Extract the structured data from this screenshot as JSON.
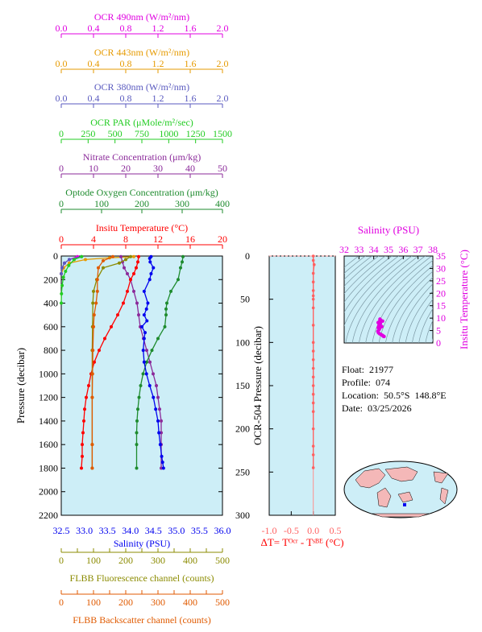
{
  "colors": {
    "ocr490": "#e000e0",
    "ocr443": "#e69a00",
    "ocr380": "#5a5abf",
    "par": "#22cc22",
    "nitrate": "#8b2a9a",
    "oxygen": "#1e8b2e",
    "temperature": "#ff0000",
    "salinity": "#0000ee",
    "fluorescence": "#8b8b00",
    "backscatter": "#e05a00",
    "panel_bg": "#cdeef7",
    "delta": "#ff6060"
  },
  "chart_data": [
    {
      "id": "main-profile",
      "type": "line",
      "ylabel": "Pressure (decibar)",
      "ylim": [
        0,
        2200
      ],
      "y_inverted": true,
      "y_ticks": [
        0,
        200,
        400,
        600,
        800,
        1000,
        1200,
        1400,
        1600,
        1800,
        2000,
        2200
      ],
      "grid": false,
      "top_axes": [
        {
          "key": "ocr490",
          "label": "OCR 490nm (W/m²/nm)",
          "range": [
            0,
            2.0
          ],
          "ticks": [
            "0.0",
            "0.4",
            "0.8",
            "1.2",
            "1.6",
            "2.0"
          ]
        },
        {
          "key": "ocr443",
          "label": "OCR 443nm (W/m²/nm)",
          "range": [
            0,
            2.0
          ],
          "ticks": [
            "0.0",
            "0.4",
            "0.8",
            "1.2",
            "1.6",
            "2.0"
          ]
        },
        {
          "key": "ocr380",
          "label": "OCR 380nm (W/m²/nm)",
          "range": [
            0,
            2.0
          ],
          "ticks": [
            "0.0",
            "0.4",
            "0.8",
            "1.2",
            "1.6",
            "2.0"
          ]
        },
        {
          "key": "par",
          "label": "OCR PAR (μMole/m²/sec)",
          "range": [
            0,
            1500
          ],
          "ticks": [
            "0",
            "250",
            "500",
            "750",
            "1000",
            "1250",
            "1500"
          ]
        },
        {
          "key": "nitrate",
          "label": "Nitrate Concentration (μm/kg)",
          "range": [
            0,
            50
          ],
          "ticks": [
            "0",
            "10",
            "20",
            "30",
            "40",
            "50"
          ]
        },
        {
          "key": "oxygen",
          "label": "Optode Oxygen Concentration (μm/kg)",
          "range": [
            0,
            400
          ],
          "ticks": [
            "0",
            "100",
            "200",
            "300",
            "400"
          ]
        },
        {
          "key": "temperature",
          "label": "Insitu Temperature (°C)",
          "range": [
            0,
            20
          ],
          "ticks": [
            "0",
            "4",
            "8",
            "12",
            "16",
            "20"
          ]
        }
      ],
      "bottom_axes": [
        {
          "key": "salinity",
          "label": "Salinity (PSU)",
          "range": [
            32.5,
            36.0
          ],
          "ticks": [
            "32.5",
            "33.0",
            "33.5",
            "34.0",
            "34.5",
            "35.0",
            "35.5",
            "36.0"
          ]
        },
        {
          "key": "fluorescence",
          "label": "FLBB Fluorescence channel (counts)",
          "range": [
            0,
            500
          ],
          "ticks": [
            "0",
            "50",
            "100",
            "150",
            "200",
            "250",
            "300",
            "350",
            "400",
            "450",
            "500"
          ]
        },
        {
          "key": "backscatter",
          "label": "FLBB Backscatter channel (counts)",
          "range": [
            0,
            500
          ],
          "ticks": [
            "0",
            "50",
            "100",
            "150",
            "200",
            "250",
            "300",
            "350",
            "400",
            "450",
            "500"
          ]
        }
      ],
      "series": [
        {
          "key": "ocr490",
          "x": [
            0.2,
            0.1,
            0.04,
            0.01,
            0.0
          ],
          "y": [
            5,
            30,
            60,
            100,
            150
          ]
        },
        {
          "key": "ocr443",
          "x": [
            0.9,
            0.6,
            0.3,
            0.1,
            0.03,
            0.0
          ],
          "y": [
            5,
            15,
            30,
            60,
            100,
            150
          ]
        },
        {
          "key": "ocr380",
          "x": [
            0.25,
            0.1,
            0.04,
            0.01,
            0.0
          ],
          "y": [
            5,
            30,
            60,
            100,
            150
          ]
        },
        {
          "key": "par",
          "x": [
            190,
            120,
            70,
            40,
            20,
            8,
            2,
            0
          ],
          "y": [
            5,
            30,
            80,
            130,
            180,
            250,
            320,
            400
          ]
        },
        {
          "key": "nitrate",
          "x": [
            18.5,
            19,
            19.5,
            20.5,
            21.5,
            22.5,
            23.5,
            24,
            24.5,
            25.5,
            26.5,
            27.5,
            28.5,
            29.5,
            30,
            30.5,
            31,
            31,
            31,
            31
          ],
          "y": [
            5,
            50,
            100,
            150,
            200,
            300,
            400,
            500,
            600,
            700,
            800,
            900,
            1000,
            1100,
            1200,
            1300,
            1400,
            1500,
            1600,
            1800
          ]
        },
        {
          "key": "oxygen",
          "x": [
            302,
            300,
            296,
            290,
            272,
            262,
            260,
            260,
            257,
            240,
            225,
            212,
            203,
            197,
            193,
            190,
            188,
            187,
            187,
            187
          ],
          "y": [
            5,
            50,
            100,
            200,
            300,
            400,
            450,
            500,
            600,
            700,
            800,
            900,
            1000,
            1100,
            1200,
            1300,
            1400,
            1500,
            1600,
            1800
          ]
        },
        {
          "key": "temperature",
          "x": [
            9.6,
            9.5,
            9.3,
            9.0,
            8.6,
            8.2,
            7.7,
            7.0,
            6.2,
            5.4,
            4.7,
            4.1,
            3.7,
            3.4,
            3.1,
            2.9,
            2.8,
            2.7,
            2.6,
            2.6,
            2.5
          ],
          "y": [
            5,
            50,
            100,
            150,
            200,
            300,
            400,
            500,
            600,
            700,
            800,
            900,
            1000,
            1100,
            1200,
            1300,
            1400,
            1500,
            1600,
            1700,
            1800
          ]
        },
        {
          "key": "salinity",
          "x": [
            34.45,
            34.42,
            34.43,
            34.5,
            34.45,
            34.42,
            34.3,
            34.38,
            34.35,
            34.3,
            34.36,
            34.25,
            34.32,
            34.3,
            34.28,
            34.3,
            34.35,
            34.42,
            34.5,
            34.55,
            34.6,
            34.62,
            34.65,
            34.68,
            34.7,
            34.72
          ],
          "y": [
            5,
            20,
            50,
            100,
            150,
            200,
            300,
            400,
            450,
            500,
            550,
            600,
            650,
            700,
            800,
            900,
            1000,
            1100,
            1200,
            1300,
            1400,
            1500,
            1600,
            1700,
            1750,
            1800
          ]
        },
        {
          "key": "fluorescence",
          "x": [
            215,
            200,
            180,
            130,
            110,
            100,
            98,
            97,
            96,
            96,
            96,
            96,
            96
          ],
          "y": [
            5,
            30,
            60,
            100,
            200,
            300,
            400,
            600,
            800,
            1000,
            1200,
            1600,
            1800
          ]
        },
        {
          "key": "backscatter",
          "x": [
            160,
            130,
            115,
            112,
            112,
            108,
            102,
            100,
            98,
            97,
            96,
            96,
            96
          ],
          "y": [
            5,
            40,
            100,
            200,
            300,
            400,
            500,
            600,
            800,
            1000,
            1200,
            1600,
            1800
          ]
        }
      ]
    },
    {
      "id": "delta-t",
      "type": "line",
      "ylabel": "OCR-504 Pressure (decibar)",
      "ylim": [
        0,
        300
      ],
      "y_inverted": true,
      "y_ticks": [
        "0",
        "50",
        "100",
        "150",
        "200",
        "250",
        "300"
      ],
      "xlabel": "ΔT= Tᴼᶜʳ - Tˢᴮᴱ (°C)",
      "xlim": [
        -1.0,
        0.5
      ],
      "x_ticks": [
        "-1.0",
        "-0.5",
        "0.0",
        "0.5"
      ],
      "series": [
        {
          "key": "delta",
          "x": [
            0.0,
            0.0,
            0.02,
            0.0,
            0.0,
            0.0,
            0.0,
            0.0,
            0.0,
            0.0,
            0.0,
            0.0,
            0.0,
            0.0,
            0.0,
            0.0,
            0.0,
            0.0,
            0.0,
            0.0,
            0.0,
            0.0,
            0.0
          ],
          "y": [
            0,
            5,
            10,
            20,
            30,
            40,
            46,
            50,
            60,
            80,
            100,
            110,
            120,
            130,
            140,
            150,
            160,
            170,
            180,
            200,
            220,
            230,
            245
          ]
        }
      ]
    },
    {
      "id": "ts-diagram",
      "type": "scatter",
      "xlabel": "Salinity (PSU)",
      "xlim": [
        32,
        38
      ],
      "x_ticks": [
        "32",
        "33",
        "34",
        "35",
        "36",
        "37",
        "38"
      ],
      "ylabel": "Insitu Temperature (°C)",
      "ylim": [
        0,
        35
      ],
      "y_ticks": [
        "0",
        "5",
        "10",
        "15",
        "20",
        "25",
        "30",
        "35"
      ],
      "density_contours": true,
      "points": [
        {
          "s": 34.42,
          "t": 9.6
        },
        {
          "s": 34.45,
          "t": 9.4
        },
        {
          "s": 34.5,
          "t": 9.0
        },
        {
          "s": 34.38,
          "t": 8.6
        },
        {
          "s": 34.3,
          "t": 8.2
        },
        {
          "s": 34.45,
          "t": 7.8
        },
        {
          "s": 34.35,
          "t": 7.0
        },
        {
          "s": 34.3,
          "t": 6.2
        },
        {
          "s": 34.4,
          "t": 5.8
        },
        {
          "s": 34.36,
          "t": 5.4
        },
        {
          "s": 34.28,
          "t": 4.7
        },
        {
          "s": 34.32,
          "t": 4.1
        },
        {
          "s": 34.4,
          "t": 3.7
        },
        {
          "s": 34.5,
          "t": 3.4
        },
        {
          "s": 34.58,
          "t": 3.1
        },
        {
          "s": 34.62,
          "t": 2.9
        },
        {
          "s": 34.66,
          "t": 2.7
        },
        {
          "s": 34.7,
          "t": 2.6
        },
        {
          "s": 34.55,
          "t": 6.6
        },
        {
          "s": 34.6,
          "t": 8.8
        }
      ]
    }
  ],
  "info": {
    "float": "Float:  21977",
    "profile": "Profile:  074",
    "location": "Location:  50.5°S  148.8°E",
    "date": "Date:  03/25/2026"
  }
}
